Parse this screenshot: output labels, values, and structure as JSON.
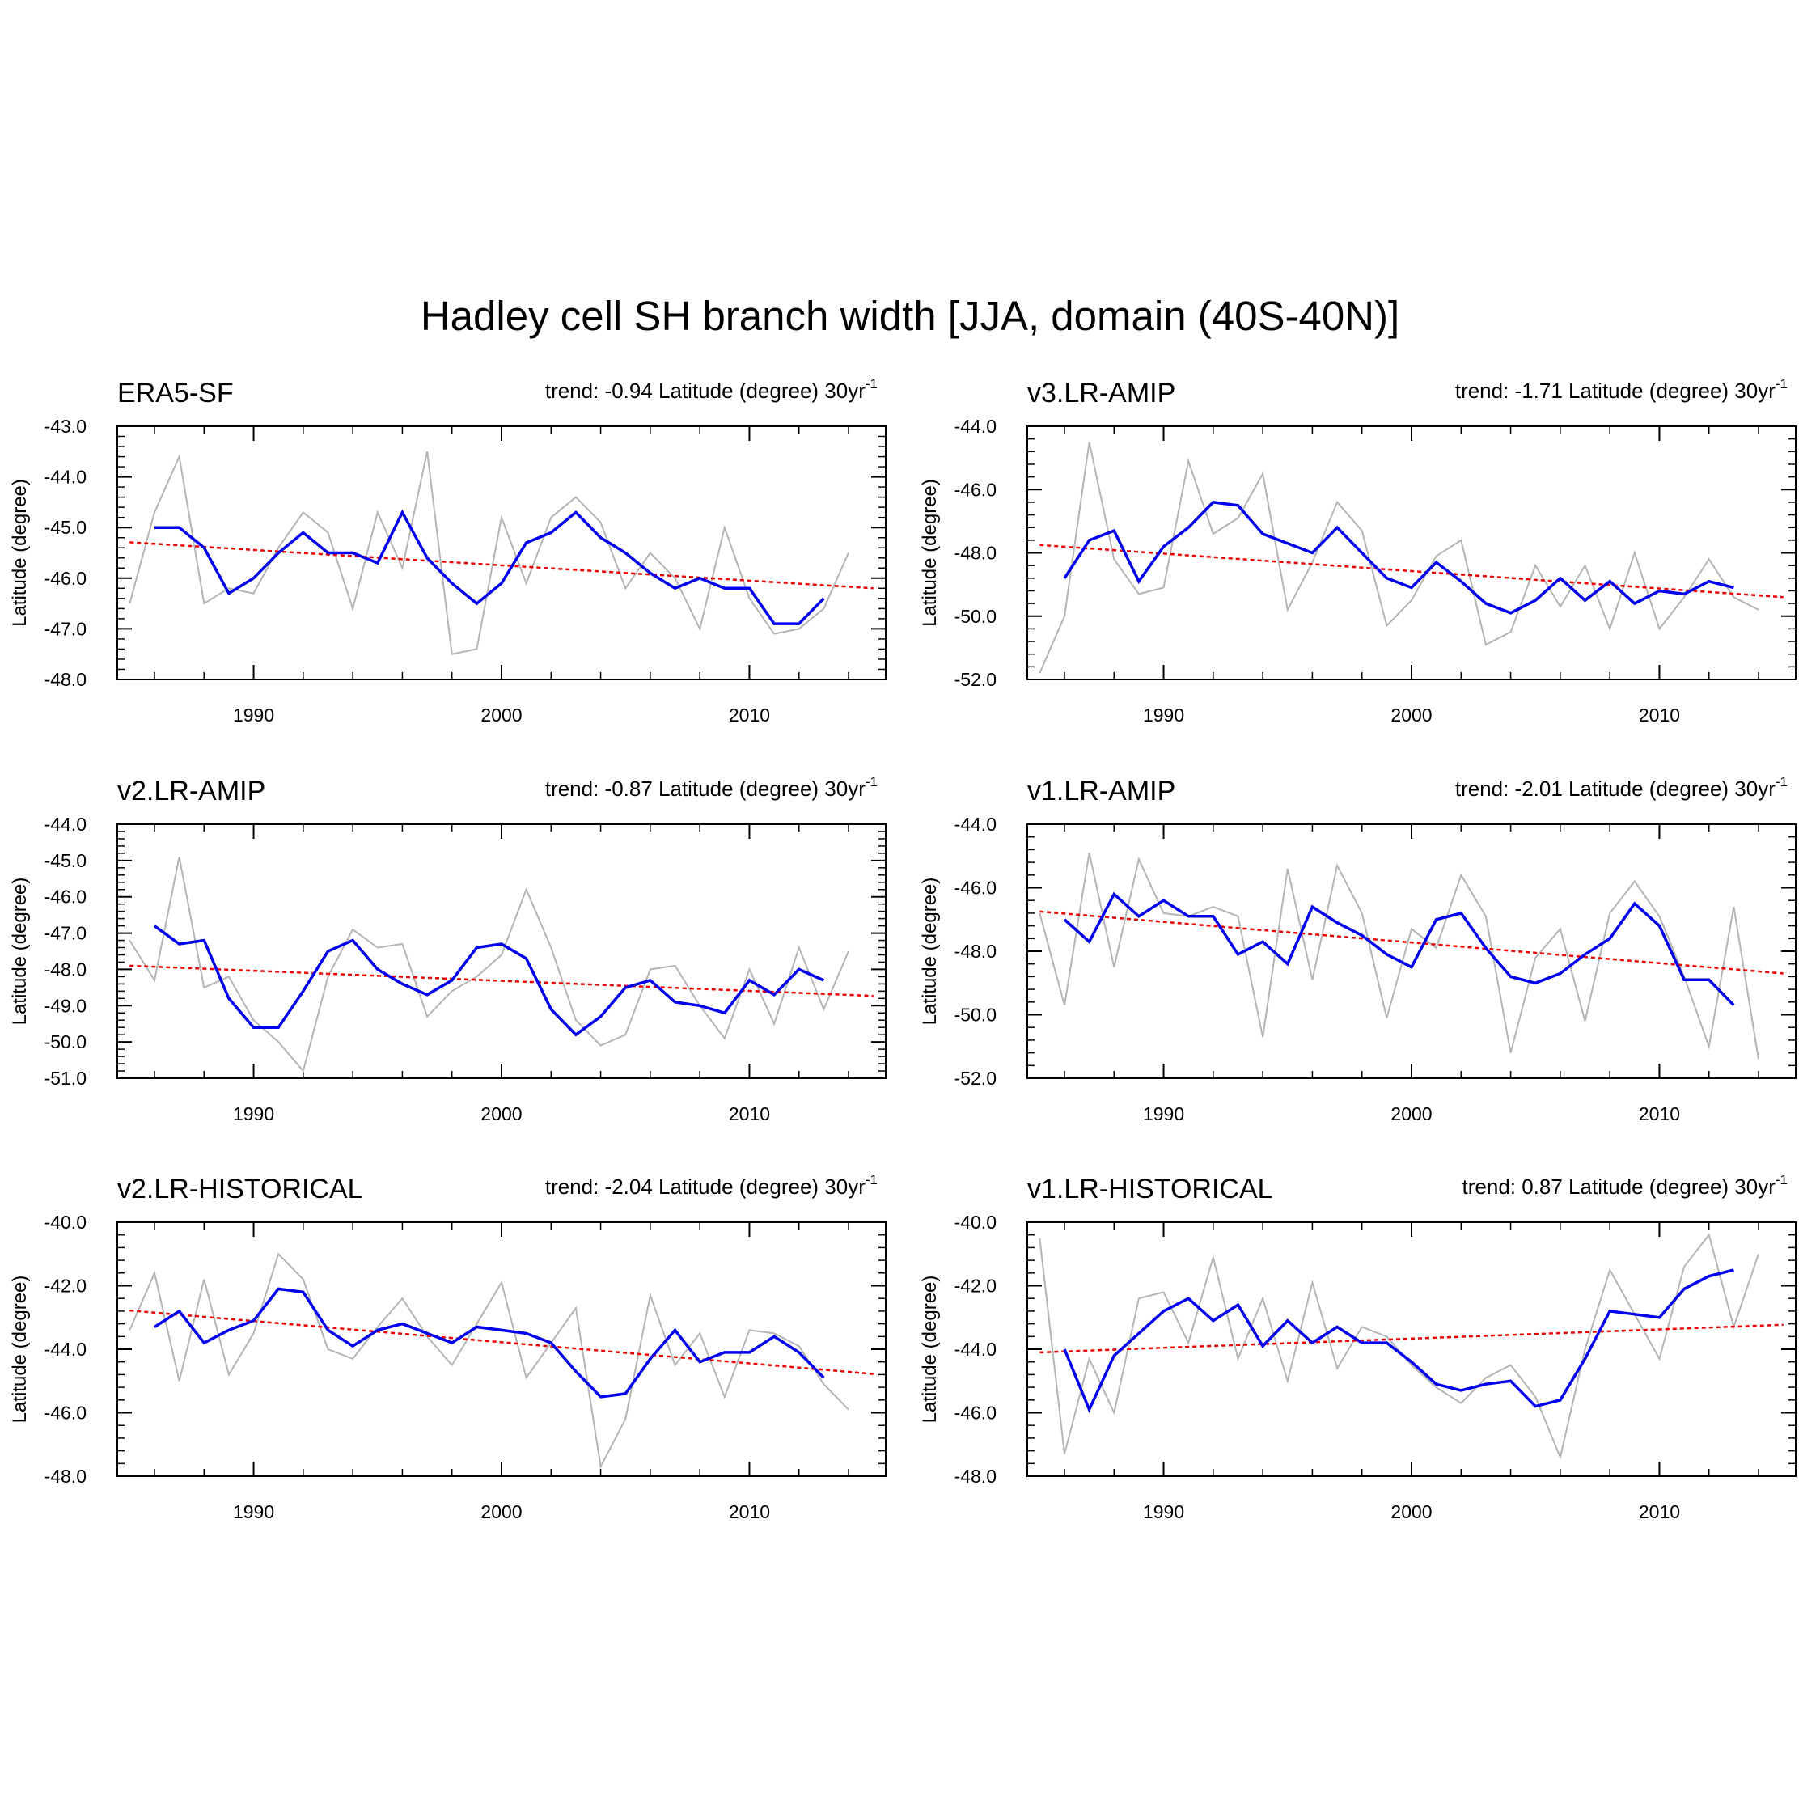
{
  "figure": {
    "title": "Hadley cell SH branch width [JJA, domain (40S-40N)]"
  },
  "colors": {
    "raw": "#b4b4b4",
    "smoothed": "#0000ee",
    "trend": "#ee0000",
    "axis": "#000000"
  },
  "chart_data": [
    {
      "type": "line",
      "title": "ERA5-SF",
      "trend_text": "trend: -0.94 Latitude (degree) 30yr",
      "trend_exp": "-1",
      "xlabel": "",
      "ylabel": "Latitude (degree)",
      "xlim": [
        1984.5,
        2015.5
      ],
      "ylim": [
        -48,
        -43
      ],
      "yticks": [
        "-43.0",
        "-44.0",
        "-45.0",
        "-46.0",
        "-47.0",
        "-48.0"
      ],
      "xticks": [
        "1990",
        "2000",
        "2010"
      ],
      "x_start": 1985,
      "series": [
        {
          "name": "annual",
          "values": [
            -46.5,
            -44.7,
            -43.6,
            -46.5,
            -46.2,
            -46.3,
            -45.4,
            -44.7,
            -45.1,
            -46.6,
            -44.7,
            -45.8,
            -43.5,
            -47.5,
            -47.4,
            -44.8,
            -46.1,
            -44.8,
            -44.4,
            -44.9,
            -46.2,
            -45.5,
            -46.0,
            -47.0,
            -45.0,
            -46.4,
            -47.1,
            -47.0,
            -46.6,
            -45.5
          ]
        },
        {
          "name": "smoothed",
          "x_start": 1986,
          "values": [
            -45.0,
            -45.0,
            -45.4,
            -46.3,
            -46.0,
            -45.5,
            -45.1,
            -45.5,
            -45.5,
            -45.7,
            -44.7,
            -45.6,
            -46.1,
            -46.5,
            -46.1,
            -45.3,
            -45.1,
            -44.7,
            -45.2,
            -45.5,
            -45.9,
            -46.2,
            -46.0,
            -46.2,
            -46.2,
            -46.9,
            -46.9,
            -46.4
          ]
        },
        {
          "name": "trend",
          "x": [
            1985,
            2015
          ],
          "values": [
            -45.29,
            -46.2
          ]
        }
      ]
    },
    {
      "type": "line",
      "title": "v3.LR-AMIP",
      "trend_text": "trend: -1.71 Latitude (degree) 30yr",
      "trend_exp": "-1",
      "xlabel": "",
      "ylabel": "Latitude (degree)",
      "xlim": [
        1984.5,
        2015.5
      ],
      "ylim": [
        -52,
        -44
      ],
      "yticks": [
        "-44.0",
        "-46.0",
        "-48.0",
        "-50.0",
        "-52.0"
      ],
      "xticks": [
        "1990",
        "2000",
        "2010"
      ],
      "x_start": 1985,
      "series": [
        {
          "name": "annual",
          "values": [
            -51.8,
            -50.0,
            -44.5,
            -48.2,
            -49.3,
            -49.1,
            -45.1,
            -47.4,
            -46.9,
            -45.5,
            -49.8,
            -48.3,
            -46.4,
            -47.3,
            -50.3,
            -49.5,
            -48.1,
            -47.6,
            -50.9,
            -50.5,
            -48.4,
            -49.7,
            -48.4,
            -50.4,
            -48.0,
            -50.4,
            -49.4,
            -48.2,
            -49.4,
            -49.8
          ]
        },
        {
          "name": "smoothed",
          "x_start": 1986,
          "values": [
            -48.8,
            -47.6,
            -47.3,
            -48.9,
            -47.8,
            -47.2,
            -46.4,
            -46.5,
            -47.4,
            -47.7,
            -48.0,
            -47.2,
            -48.0,
            -48.8,
            -49.1,
            -48.3,
            -48.9,
            -49.6,
            -49.9,
            -49.5,
            -48.8,
            -49.5,
            -48.9,
            -49.6,
            -49.2,
            -49.3,
            -48.9,
            -49.1
          ]
        },
        {
          "name": "trend",
          "x": [
            1985,
            2015
          ],
          "values": [
            -47.75,
            -49.4
          ]
        }
      ]
    },
    {
      "type": "line",
      "title": "v2.LR-AMIP",
      "trend_text": "trend: -0.87 Latitude (degree) 30yr",
      "trend_exp": "-1",
      "xlabel": "",
      "ylabel": "Latitude (degree)",
      "xlim": [
        1984.5,
        2015.5
      ],
      "ylim": [
        -51,
        -44
      ],
      "yticks": [
        "-44.0",
        "-45.0",
        "-46.0",
        "-47.0",
        "-48.0",
        "-49.0",
        "-50.0",
        "-51.0"
      ],
      "xticks": [
        "1990",
        "2000",
        "2010"
      ],
      "x_start": 1985,
      "series": [
        {
          "name": "annual",
          "values": [
            -47.2,
            -48.3,
            -44.9,
            -48.5,
            -48.2,
            -49.4,
            -50.0,
            -50.8,
            -48.2,
            -46.9,
            -47.4,
            -47.3,
            -49.3,
            -48.6,
            -48.2,
            -47.6,
            -45.8,
            -47.4,
            -49.4,
            -50.1,
            -49.8,
            -48.0,
            -47.9,
            -49.0,
            -49.9,
            -48.0,
            -49.5,
            -47.4,
            -49.1,
            -47.5
          ]
        },
        {
          "name": "smoothed",
          "x_start": 1986,
          "values": [
            -46.8,
            -47.3,
            -47.2,
            -48.8,
            -49.6,
            -49.6,
            -48.6,
            -47.5,
            -47.2,
            -48.0,
            -48.4,
            -48.7,
            -48.3,
            -47.4,
            -47.3,
            -47.7,
            -49.1,
            -49.8,
            -49.3,
            -48.5,
            -48.3,
            -48.9,
            -49.0,
            -49.2,
            -48.3,
            -48.7,
            -48.0,
            -48.3
          ]
        },
        {
          "name": "trend",
          "x": [
            1985,
            2015
          ],
          "values": [
            -47.9,
            -48.73
          ]
        }
      ]
    },
    {
      "type": "line",
      "title": "v1.LR-AMIP",
      "trend_text": "trend: -2.01 Latitude (degree) 30yr",
      "trend_exp": "-1",
      "xlabel": "",
      "ylabel": "Latitude (degree)",
      "xlim": [
        1984.5,
        2015.5
      ],
      "ylim": [
        -52,
        -44
      ],
      "yticks": [
        "-44.0",
        "-46.0",
        "-48.0",
        "-50.0",
        "-52.0"
      ],
      "xticks": [
        "1990",
        "2000",
        "2010"
      ],
      "x_start": 1985,
      "series": [
        {
          "name": "annual",
          "values": [
            -46.8,
            -49.7,
            -44.9,
            -48.5,
            -45.1,
            -46.8,
            -46.9,
            -46.6,
            -46.9,
            -50.7,
            -45.4,
            -48.9,
            -45.3,
            -46.8,
            -50.1,
            -47.3,
            -47.9,
            -45.6,
            -46.9,
            -51.2,
            -48.2,
            -47.3,
            -50.2,
            -46.8,
            -45.8,
            -46.9,
            -48.8,
            -51.0,
            -46.6,
            -51.4
          ]
        },
        {
          "name": "smoothed",
          "x_start": 1986,
          "values": [
            -47.0,
            -47.7,
            -46.2,
            -46.9,
            -46.4,
            -46.9,
            -46.9,
            -48.1,
            -47.7,
            -48.4,
            -46.6,
            -47.1,
            -47.5,
            -48.1,
            -48.5,
            -47.0,
            -46.8,
            -47.9,
            -48.8,
            -49.0,
            -48.7,
            -48.1,
            -47.6,
            -46.5,
            -47.2,
            -48.9,
            -48.9,
            -49.7
          ]
        },
        {
          "name": "trend",
          "x": [
            1985,
            2015
          ],
          "values": [
            -46.75,
            -48.7
          ]
        }
      ]
    },
    {
      "type": "line",
      "title": "v2.LR-HISTORICAL",
      "trend_text": "trend: -2.04 Latitude (degree) 30yr",
      "trend_exp": "-1",
      "xlabel": "",
      "ylabel": "Latitude (degree)",
      "xlim": [
        1984.5,
        2015.5
      ],
      "ylim": [
        -48,
        -40
      ],
      "yticks": [
        "-40.0",
        "-42.0",
        "-44.0",
        "-46.0",
        "-48.0"
      ],
      "xticks": [
        "1990",
        "2000",
        "2010"
      ],
      "x_start": 1985,
      "series": [
        {
          "name": "annual",
          "values": [
            -43.4,
            -41.6,
            -45.0,
            -41.8,
            -44.8,
            -43.5,
            -41.0,
            -41.8,
            -44.0,
            -44.3,
            -43.3,
            -42.4,
            -43.6,
            -44.5,
            -43.2,
            -41.9,
            -44.9,
            -43.8,
            -42.7,
            -47.7,
            -46.2,
            -42.3,
            -44.5,
            -43.5,
            -45.5,
            -43.4,
            -43.5,
            -43.9,
            -45.1,
            -45.9
          ]
        },
        {
          "name": "smoothed",
          "x_start": 1986,
          "values": [
            -43.3,
            -42.8,
            -43.8,
            -43.4,
            -43.1,
            -42.1,
            -42.2,
            -43.4,
            -43.9,
            -43.4,
            -43.2,
            -43.5,
            -43.8,
            -43.3,
            -43.4,
            -43.5,
            -43.8,
            -44.7,
            -45.5,
            -45.4,
            -44.3,
            -43.4,
            -44.4,
            -44.1,
            -44.1,
            -43.6,
            -44.1,
            -44.9
          ]
        },
        {
          "name": "trend",
          "x": [
            1985,
            2015
          ],
          "values": [
            -42.78,
            -44.78
          ]
        }
      ]
    },
    {
      "type": "line",
      "title": "v1.LR-HISTORICAL",
      "trend_text": "trend: 0.87 Latitude (degree) 30yr",
      "trend_exp": "-1",
      "xlabel": "",
      "ylabel": "Latitude (degree)",
      "xlim": [
        1984.5,
        2015.5
      ],
      "ylim": [
        -48,
        -40
      ],
      "yticks": [
        "-40.0",
        "-42.0",
        "-44.0",
        "-46.0",
        "-48.0"
      ],
      "xticks": [
        "1990",
        "2000",
        "2010"
      ],
      "x_start": 1985,
      "series": [
        {
          "name": "annual",
          "values": [
            -40.5,
            -47.3,
            -44.3,
            -46.0,
            -42.4,
            -42.2,
            -43.8,
            -41.1,
            -44.3,
            -42.4,
            -45.0,
            -41.9,
            -44.6,
            -43.3,
            -43.6,
            -44.5,
            -45.2,
            -45.7,
            -44.9,
            -44.5,
            -45.5,
            -47.4,
            -44.0,
            -41.5,
            -42.9,
            -44.3,
            -41.4,
            -40.4,
            -43.3,
            -41.0
          ]
        },
        {
          "name": "smoothed",
          "x_start": 1986,
          "values": [
            -44.0,
            -45.9,
            -44.2,
            -43.5,
            -42.8,
            -42.4,
            -43.1,
            -42.6,
            -43.9,
            -43.1,
            -43.8,
            -43.3,
            -43.8,
            -43.8,
            -44.4,
            -45.1,
            -45.3,
            -45.1,
            -45.0,
            -45.8,
            -45.6,
            -44.3,
            -42.8,
            -42.9,
            -43.0,
            -42.1,
            -41.7,
            -41.5
          ]
        },
        {
          "name": "trend",
          "x": [
            1985,
            2015
          ],
          "values": [
            -44.1,
            -43.23
          ]
        }
      ]
    }
  ]
}
